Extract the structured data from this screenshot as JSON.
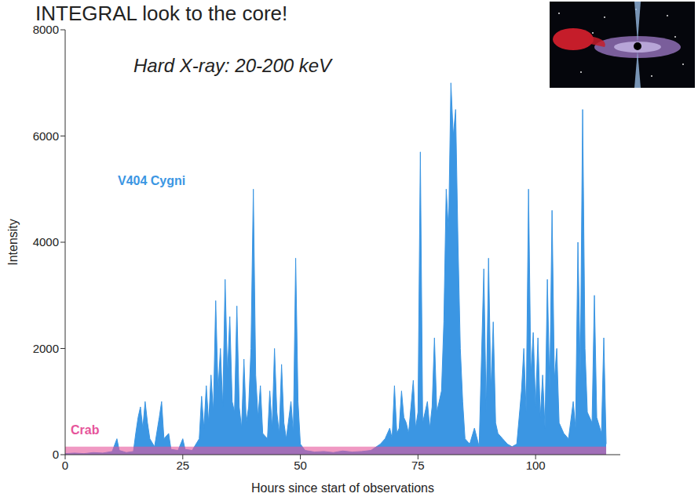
{
  "chart_data": {
    "type": "area",
    "title": "INTEGRAL look to the core!",
    "annotations": [
      "Hard X-ray: 20-200 keV"
    ],
    "x_label": "Hours since start of observations",
    "y_label": "Intensity",
    "xlim": [
      0,
      118
    ],
    "xticks": [
      0,
      25,
      50,
      75,
      100
    ],
    "ylim": [
      0,
      8000
    ],
    "yticks": [
      0,
      2000,
      4000,
      6000,
      8000
    ],
    "grid": false,
    "series": [
      {
        "name": "V404 Cygni",
        "color": "#3b96e3",
        "x": [
          0,
          2,
          4,
          6,
          8,
          10,
          11,
          11.5,
          13,
          14.5,
          15,
          15.5,
          16,
          16.5,
          17,
          17.5,
          18,
          19,
          20,
          20.5,
          21,
          22,
          22.5,
          24,
          25,
          25.5,
          27,
          28.5,
          29,
          29.5,
          30,
          30.5,
          31,
          31.5,
          32,
          32.5,
          33,
          33.5,
          34,
          34.5,
          35,
          35.5,
          36,
          36.5,
          37,
          37.5,
          38,
          38.5,
          39,
          39.5,
          40,
          40.5,
          41,
          41.5,
          42,
          43,
          43.5,
          44,
          44.5,
          45,
          45.5,
          46,
          46.5,
          47,
          48,
          48.5,
          49,
          49.5,
          50,
          51,
          53,
          55,
          57,
          59,
          61,
          63,
          65,
          67,
          68,
          69,
          69.5,
          70,
          70.5,
          71,
          71.5,
          72,
          72.5,
          73,
          74,
          74.5,
          75,
          75.5,
          76,
          77,
          77.5,
          78,
          78.5,
          79,
          80,
          80.5,
          81,
          81.5,
          82,
          82.5,
          83,
          83.5,
          84,
          84.5,
          85,
          86,
          87,
          88,
          89,
          89.5,
          90,
          90.5,
          91,
          91.5,
          92,
          93,
          94,
          95,
          96,
          97,
          97.5,
          98,
          98.5,
          99,
          99.5,
          100,
          100.5,
          101,
          101.5,
          102,
          102.5,
          103,
          103.5,
          104,
          104.5,
          105,
          106,
          107,
          108,
          108.5,
          109,
          109.5,
          110,
          110.5,
          111,
          112,
          112.5,
          113,
          114,
          114.5,
          115
        ],
        "values": [
          20,
          30,
          20,
          40,
          30,
          60,
          300,
          80,
          40,
          60,
          400,
          700,
          900,
          500,
          1000,
          600,
          300,
          150,
          700,
          1000,
          300,
          400,
          100,
          80,
          300,
          100,
          80,
          300,
          1100,
          500,
          1300,
          600,
          1500,
          800,
          2900,
          1200,
          2000,
          900,
          3300,
          1500,
          2600,
          1000,
          800,
          2800,
          900,
          500,
          1800,
          600,
          900,
          2000,
          5000,
          1500,
          700,
          1300,
          400,
          300,
          1200,
          500,
          2000,
          800,
          400,
          1700,
          600,
          300,
          1000,
          400,
          3700,
          1000,
          200,
          80,
          50,
          60,
          40,
          70,
          50,
          60,
          80,
          200,
          300,
          500,
          300,
          1300,
          400,
          500,
          1200,
          700,
          600,
          400,
          1400,
          500,
          800,
          5700,
          600,
          1000,
          500,
          900,
          2200,
          800,
          1200,
          2500,
          5000,
          4200,
          7000,
          6000,
          6500,
          4000,
          2000,
          1000,
          300,
          200,
          500,
          150,
          3500,
          800,
          3700,
          1200,
          2500,
          600,
          400,
          300,
          200,
          150,
          200,
          1200,
          2000,
          800,
          5000,
          1500,
          2300,
          900,
          2200,
          700,
          1500,
          500,
          3300,
          1200,
          4600,
          1400,
          2000,
          600,
          400,
          300,
          1000,
          500,
          4000,
          1500,
          6500,
          2000,
          800,
          600,
          3000,
          700,
          400,
          2200,
          200
        ]
      },
      {
        "name": "Crab",
        "color": "#e6559b",
        "x": [
          0,
          115
        ],
        "values": [
          150,
          150
        ]
      }
    ]
  }
}
